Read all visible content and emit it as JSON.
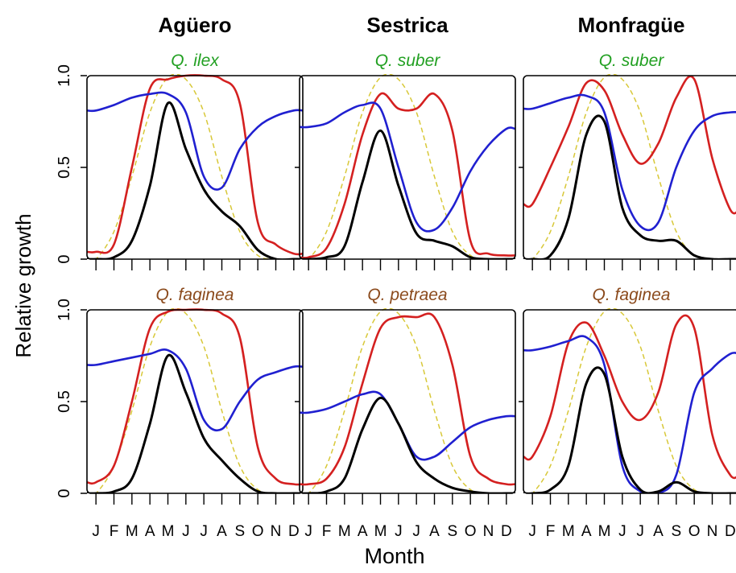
{
  "figure": {
    "xlabel": "Month",
    "ylabel": "Relative growth",
    "month_ticks": [
      "J",
      "F",
      "M",
      "A",
      "M",
      "J",
      "J",
      "A",
      "S",
      "O",
      "N",
      "D"
    ],
    "y_ticks": [
      "0",
      "0.5",
      "1.0"
    ],
    "columns": [
      "Agüero",
      "Sestrica",
      "Monfragüe"
    ],
    "colors": {
      "green_species": "#22a022",
      "brown_species": "#8b4a1c",
      "red": "#d42020",
      "blue": "#2020d0",
      "black": "#000000",
      "yellow": "#d8c838"
    }
  },
  "chart_data": [
    {
      "type": "line",
      "title": "Agüero",
      "subtitle": "Q. ilex",
      "subtitle_color": "green",
      "ylim": [
        0,
        1
      ],
      "x": [
        1,
        2,
        3,
        4,
        5,
        6,
        7,
        8,
        9,
        10,
        11,
        12
      ],
      "series": [
        {
          "color": "red",
          "values": [
            0.04,
            0.08,
            0.5,
            0.93,
            0.98,
            1.0,
            1.0,
            0.98,
            0.85,
            0.2,
            0.08,
            0.03
          ]
        },
        {
          "color": "blue",
          "values": [
            0.81,
            0.84,
            0.88,
            0.9,
            0.9,
            0.8,
            0.45,
            0.39,
            0.6,
            0.72,
            0.78,
            0.81
          ]
        },
        {
          "color": "black",
          "values": [
            0.0,
            0.01,
            0.1,
            0.4,
            0.85,
            0.6,
            0.38,
            0.26,
            0.18,
            0.05,
            0.0,
            0.0
          ]
        },
        {
          "color": "yellow",
          "style": "dashed",
          "values": [
            0.0,
            0.15,
            0.45,
            0.8,
            0.99,
            0.98,
            0.8,
            0.45,
            0.15,
            0.02,
            0.0,
            0.0
          ]
        }
      ]
    },
    {
      "type": "line",
      "title": "Sestrica",
      "subtitle": "Q. suber",
      "subtitle_color": "green",
      "ylim": [
        0,
        1
      ],
      "x": [
        1,
        2,
        3,
        4,
        5,
        6,
        7,
        8,
        9,
        10,
        11,
        12
      ],
      "series": [
        {
          "color": "red",
          "values": [
            0.01,
            0.06,
            0.3,
            0.68,
            0.9,
            0.82,
            0.82,
            0.9,
            0.7,
            0.1,
            0.03,
            0.02
          ]
        },
        {
          "color": "blue",
          "values": [
            0.72,
            0.74,
            0.8,
            0.84,
            0.82,
            0.5,
            0.2,
            0.16,
            0.28,
            0.48,
            0.62,
            0.71
          ]
        },
        {
          "color": "black",
          "values": [
            0.0,
            0.01,
            0.07,
            0.42,
            0.7,
            0.4,
            0.14,
            0.1,
            0.07,
            0.01,
            0.0,
            0.0
          ]
        },
        {
          "color": "yellow",
          "style": "dashed",
          "values": [
            0.0,
            0.15,
            0.45,
            0.8,
            0.99,
            0.98,
            0.8,
            0.45,
            0.15,
            0.02,
            0.0,
            0.0
          ]
        }
      ]
    },
    {
      "type": "line",
      "title": "Monfragüe",
      "subtitle": "Q. suber",
      "subtitle_color": "green",
      "ylim": [
        0,
        1
      ],
      "x": [
        1,
        2,
        3,
        4,
        5,
        6,
        7,
        8,
        9,
        10,
        11,
        12
      ],
      "series": [
        {
          "color": "red",
          "values": [
            0.3,
            0.5,
            0.72,
            0.96,
            0.92,
            0.68,
            0.52,
            0.63,
            0.88,
            0.98,
            0.55,
            0.27
          ]
        },
        {
          "color": "blue",
          "values": [
            0.82,
            0.85,
            0.88,
            0.89,
            0.8,
            0.38,
            0.18,
            0.2,
            0.5,
            0.7,
            0.78,
            0.8
          ]
        },
        {
          "color": "black",
          "values": [
            0.0,
            0.02,
            0.22,
            0.68,
            0.75,
            0.28,
            0.13,
            0.1,
            0.1,
            0.02,
            0.0,
            0.0
          ]
        },
        {
          "color": "yellow",
          "style": "dashed",
          "values": [
            0.0,
            0.15,
            0.45,
            0.8,
            0.99,
            0.98,
            0.8,
            0.45,
            0.15,
            0.02,
            0.0,
            0.0
          ]
        }
      ]
    },
    {
      "type": "line",
      "subtitle": "Q. faginea",
      "subtitle_color": "brown",
      "ylim": [
        0,
        1
      ],
      "x": [
        1,
        2,
        3,
        4,
        5,
        6,
        7,
        8,
        9,
        10,
        11,
        12
      ],
      "series": [
        {
          "color": "red",
          "values": [
            0.06,
            0.15,
            0.5,
            0.9,
            0.99,
            1.0,
            1.0,
            0.98,
            0.85,
            0.25,
            0.08,
            0.05
          ]
        },
        {
          "color": "blue",
          "values": [
            0.7,
            0.72,
            0.74,
            0.76,
            0.78,
            0.68,
            0.4,
            0.35,
            0.5,
            0.62,
            0.66,
            0.69
          ]
        },
        {
          "color": "black",
          "values": [
            0.0,
            0.01,
            0.08,
            0.38,
            0.75,
            0.55,
            0.3,
            0.18,
            0.08,
            0.01,
            0.0,
            0.0
          ]
        },
        {
          "color": "yellow",
          "style": "dashed",
          "values": [
            0.0,
            0.15,
            0.45,
            0.8,
            0.99,
            0.98,
            0.8,
            0.45,
            0.15,
            0.02,
            0.0,
            0.0
          ]
        }
      ]
    },
    {
      "type": "line",
      "subtitle": "Q. petraea",
      "subtitle_color": "brown",
      "ylim": [
        0,
        1
      ],
      "x": [
        1,
        2,
        3,
        4,
        5,
        6,
        7,
        8,
        9,
        10,
        11,
        12
      ],
      "series": [
        {
          "color": "red",
          "values": [
            0.05,
            0.08,
            0.25,
            0.6,
            0.9,
            0.96,
            0.96,
            0.96,
            0.7,
            0.2,
            0.08,
            0.05
          ]
        },
        {
          "color": "blue",
          "values": [
            0.44,
            0.46,
            0.5,
            0.54,
            0.54,
            0.38,
            0.2,
            0.2,
            0.28,
            0.36,
            0.4,
            0.42
          ]
        },
        {
          "color": "black",
          "values": [
            0.0,
            0.01,
            0.08,
            0.35,
            0.52,
            0.38,
            0.17,
            0.08,
            0.03,
            0.01,
            0.0,
            0.0
          ]
        },
        {
          "color": "yellow",
          "style": "dashed",
          "values": [
            0.0,
            0.15,
            0.45,
            0.8,
            0.99,
            0.98,
            0.8,
            0.45,
            0.15,
            0.02,
            0.0,
            0.0
          ]
        }
      ]
    },
    {
      "type": "line",
      "subtitle": "Q. faginea",
      "subtitle_color": "brown",
      "ylim": [
        0,
        1
      ],
      "x": [
        1,
        2,
        3,
        4,
        5,
        6,
        7,
        8,
        9,
        10,
        11,
        12
      ],
      "series": [
        {
          "color": "red",
          "values": [
            0.2,
            0.42,
            0.82,
            0.93,
            0.75,
            0.5,
            0.4,
            0.55,
            0.92,
            0.9,
            0.32,
            0.1
          ]
        },
        {
          "color": "blue",
          "values": [
            0.78,
            0.8,
            0.83,
            0.85,
            0.7,
            0.15,
            0.01,
            0.0,
            0.1,
            0.55,
            0.68,
            0.76
          ]
        },
        {
          "color": "black",
          "values": [
            0.0,
            0.02,
            0.15,
            0.6,
            0.65,
            0.2,
            0.02,
            0.01,
            0.06,
            0.01,
            0.0,
            0.0
          ]
        },
        {
          "color": "yellow",
          "style": "dashed",
          "values": [
            0.0,
            0.15,
            0.45,
            0.8,
            0.99,
            0.98,
            0.8,
            0.45,
            0.15,
            0.02,
            0.0,
            0.0
          ]
        }
      ]
    }
  ]
}
